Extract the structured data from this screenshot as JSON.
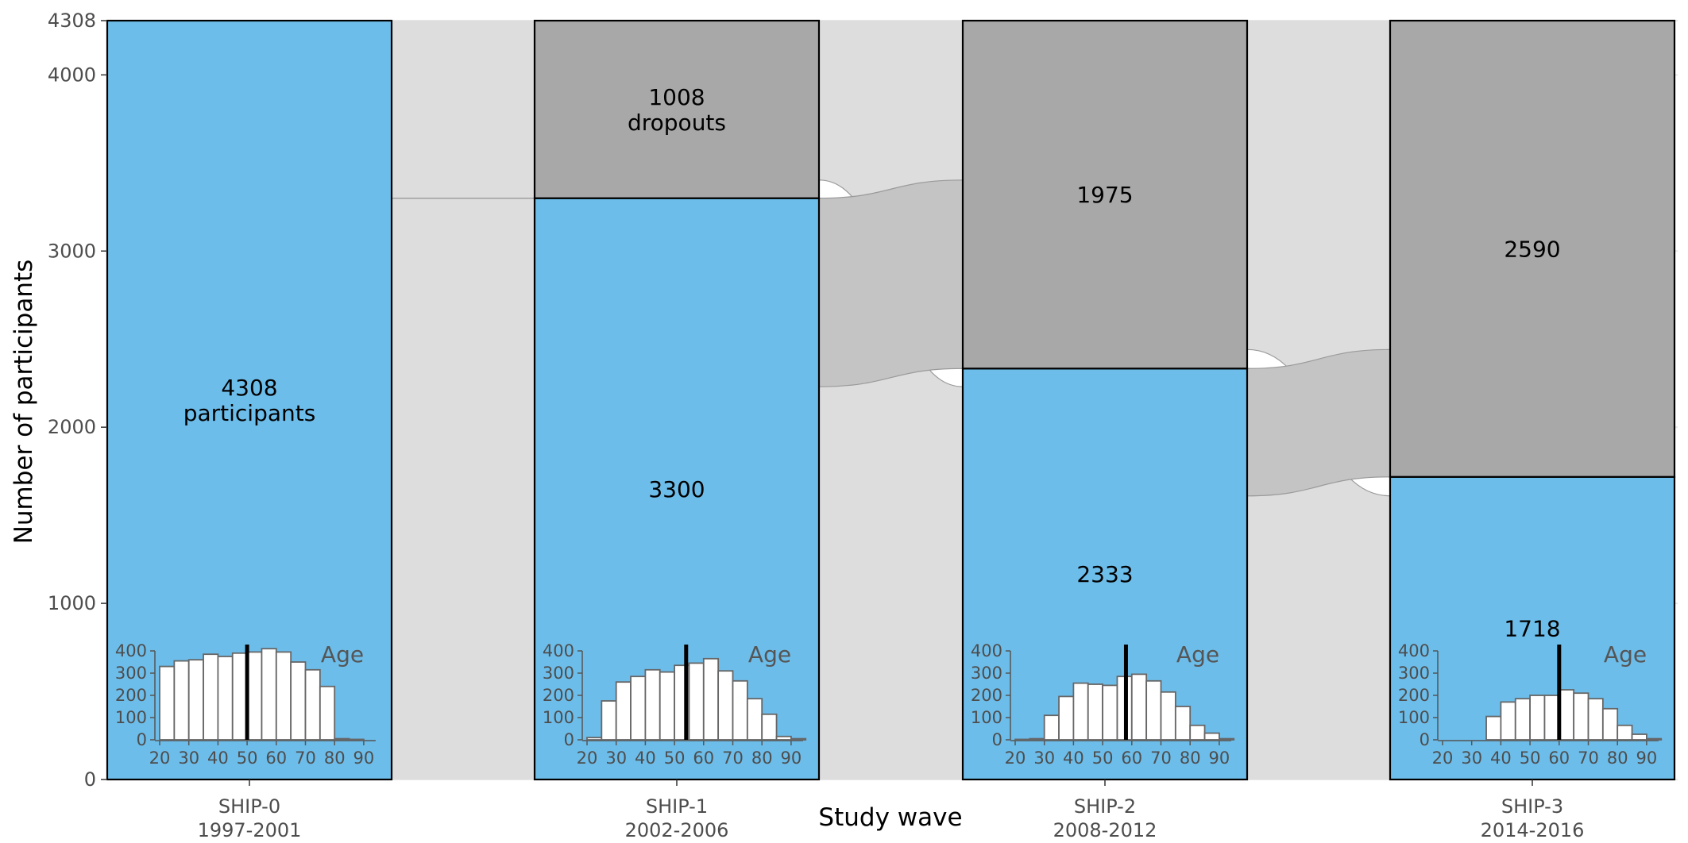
{
  "chart_data": {
    "type": "alluvial",
    "title": "",
    "xlabel": "Study wave",
    "ylabel": "Number of participants",
    "ylim": [
      0,
      4308
    ],
    "yticks": [
      0,
      1000,
      2000,
      3000,
      4000,
      4308
    ],
    "grid": true,
    "colors": {
      "participants": "#6dbdea",
      "dropouts": "#a8a8a8",
      "flow": "#dddddd",
      "flow_band": "#c4c4c4",
      "histogram_bar": "#ffffff",
      "median_line": "#000000"
    },
    "waves": [
      {
        "name": "SHIP-0",
        "years": "1997-2001",
        "participants": 4308,
        "dropouts": 0,
        "participants_label": "4308",
        "participants_sublabel": "participants",
        "dropouts_label": "",
        "dropouts_sublabel": ""
      },
      {
        "name": "SHIP-1",
        "years": "2002-2006",
        "participants": 3300,
        "dropouts": 1008,
        "participants_label": "3300",
        "participants_sublabel": "",
        "dropouts_label": "1008",
        "dropouts_sublabel": "dropouts"
      },
      {
        "name": "SHIP-2",
        "years": "2008-2012",
        "participants": 2333,
        "dropouts": 1975,
        "participants_label": "2333",
        "participants_sublabel": "",
        "dropouts_label": "1975",
        "dropouts_sublabel": ""
      },
      {
        "name": "SHIP-3",
        "years": "2014-2016",
        "participants": 1718,
        "dropouts": 2590,
        "participants_label": "1718",
        "participants_sublabel": "",
        "dropouts_label": "2590",
        "dropouts_sublabel": ""
      }
    ],
    "flows": [
      {
        "from_wave": 1,
        "to_wave": 2,
        "participants_to_dropouts": 1070,
        "dropouts_to_participants": 103
      },
      {
        "from_wave": 2,
        "to_wave": 3,
        "participants_to_dropouts": 723,
        "dropouts_to_participants": 108
      }
    ],
    "age_histograms": {
      "title": "Age",
      "x_ticks": [
        20,
        30,
        40,
        50,
        60,
        70,
        80,
        90
      ],
      "y_ticks": [
        0,
        100,
        200,
        300,
        400
      ],
      "ylim": [
        0,
        400
      ],
      "bin_start": 20,
      "bin_width": 5,
      "panels": [
        {
          "wave": "SHIP-0",
          "median": 50,
          "counts": [
            330,
            355,
            360,
            385,
            375,
            390,
            395,
            410,
            395,
            350,
            315,
            240,
            5,
            2,
            0
          ]
        },
        {
          "wave": "SHIP-1",
          "median": 54,
          "counts": [
            10,
            175,
            260,
            285,
            315,
            305,
            335,
            345,
            365,
            310,
            265,
            185,
            115,
            15,
            5
          ]
        },
        {
          "wave": "SHIP-2",
          "median": 58,
          "counts": [
            2,
            5,
            110,
            195,
            255,
            250,
            245,
            285,
            295,
            265,
            215,
            150,
            65,
            30,
            5
          ]
        },
        {
          "wave": "SHIP-3",
          "median": 60,
          "counts": [
            0,
            0,
            0,
            105,
            170,
            185,
            200,
            200,
            225,
            210,
            185,
            140,
            65,
            25,
            5
          ]
        }
      ]
    }
  }
}
